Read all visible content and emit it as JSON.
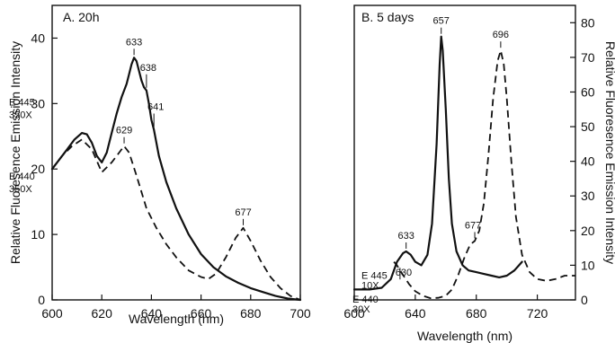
{
  "chart_data": [
    {
      "type": "line",
      "title": "A. 20h",
      "xlabel": "Wavelength (nm)",
      "ylabel": "Relative Fluoresence Emission Intensity",
      "xlim": [
        600,
        700
      ],
      "ylim": [
        0,
        45
      ],
      "x_ticks": [
        "600",
        "620",
        "640",
        "660",
        "680",
        "700"
      ],
      "y_ticks": [
        "0",
        "10",
        "20",
        "30",
        "40"
      ],
      "y_axis_side": "left",
      "grid": false,
      "series": [
        {
          "style": "solid",
          "x": [
            600,
            603,
            606,
            609,
            612,
            614,
            616,
            618,
            620,
            622,
            624,
            626,
            628,
            630,
            631,
            632,
            633,
            634,
            635,
            636,
            637,
            638,
            639,
            640,
            641,
            643,
            646,
            650,
            655,
            660,
            665,
            670,
            675,
            680,
            685,
            690,
            695,
            700
          ],
          "y": [
            20,
            21.5,
            23,
            24.5,
            25.5,
            25.3,
            24,
            22,
            21,
            22.5,
            25.5,
            28.5,
            31,
            33,
            34.5,
            36,
            37,
            36.5,
            35,
            33.5,
            32.5,
            32,
            30,
            27.5,
            26,
            22,
            18,
            14,
            10,
            7,
            5,
            3.6,
            2.6,
            1.8,
            1.2,
            0.6,
            0.2,
            0
          ]
        },
        {
          "style": "dashed",
          "x": [
            600,
            604,
            608,
            612,
            616,
            620,
            624,
            627,
            629,
            631,
            634,
            638,
            642,
            646,
            650,
            655,
            660,
            663,
            666,
            670,
            674,
            677,
            680,
            684,
            688,
            692,
            696,
            700
          ],
          "y": [
            20,
            22,
            23.5,
            24.5,
            23,
            19.5,
            21,
            22.5,
            23.5,
            22.5,
            19,
            14,
            11,
            8.5,
            6.5,
            4.5,
            3.5,
            3.2,
            4,
            6.5,
            9.5,
            11,
            9,
            6,
            3.5,
            1.8,
            0.6,
            0
          ]
        }
      ],
      "annotations": [
        {
          "text": "633",
          "x": 633,
          "y": 37
        },
        {
          "text": "638",
          "x": 638,
          "y": 32
        },
        {
          "text": "641",
          "x": 641,
          "y": 26
        },
        {
          "text": "629",
          "x": 629,
          "y": 23.5
        },
        {
          "text": "677",
          "x": 677,
          "y": 11
        },
        {
          "text": "E 445",
          "x": 600,
          "y": 26
        },
        {
          "text": "350X",
          "x": 600,
          "y": 26
        },
        {
          "text": "E 440",
          "x": 600,
          "y": 20
        },
        {
          "text": "350X",
          "x": 600,
          "y": 20
        }
      ]
    },
    {
      "type": "line",
      "title": "B. 5 days",
      "xlabel": "Wavelength (nm)",
      "ylabel": "Relative Fluoresence Emission Intensity",
      "xlim": [
        600,
        745
      ],
      "ylim": [
        0,
        85
      ],
      "x_ticks": [
        "600",
        "640",
        "680",
        "720"
      ],
      "y_ticks": [
        "0",
        "10",
        "20",
        "30",
        "40",
        "50",
        "60",
        "70",
        "80"
      ],
      "y_axis_side": "right",
      "grid": false,
      "series": [
        {
          "style": "solid",
          "x": [
            600,
            610,
            618,
            624,
            628,
            632,
            634,
            637,
            640,
            644,
            648,
            651,
            654,
            656,
            657,
            658,
            660,
            662,
            664,
            667,
            671,
            675,
            680,
            685,
            690,
            695,
            700,
            705,
            710
          ],
          "y": [
            3,
            3,
            3.5,
            6,
            11,
            13.5,
            14,
            13,
            11,
            10,
            13,
            22,
            45,
            68,
            76,
            72,
            55,
            35,
            22,
            14,
            10,
            8.5,
            8,
            7.5,
            7,
            6.5,
            7,
            8.5,
            11
          ]
        },
        {
          "style": "dashed",
          "x": [
            626,
            628,
            630,
            633,
            636,
            640,
            645,
            650,
            655,
            660,
            664,
            668,
            672,
            676,
            679,
            682,
            685,
            688,
            691,
            694,
            696,
            698,
            700,
            703,
            706,
            710,
            715,
            720,
            726,
            732,
            738,
            745
          ],
          "y": [
            11,
            10,
            8.5,
            6.5,
            4.5,
            2.5,
            1.2,
            0.5,
            0.6,
            1.2,
            3,
            7,
            12,
            16,
            17,
            20,
            28,
            42,
            58,
            69,
            72,
            68,
            58,
            40,
            24,
            13,
            8,
            6,
            5.5,
            6,
            7,
            7
          ]
        }
      ],
      "annotations": [
        {
          "text": "657",
          "x": 657,
          "y": 76
        },
        {
          "text": "696",
          "x": 696,
          "y": 72
        },
        {
          "text": "633",
          "x": 634,
          "y": 14
        },
        {
          "text": "677",
          "x": 679,
          "y": 17
        },
        {
          "text": "630",
          "x": 630,
          "y": 8.5
        },
        {
          "text": "E 445",
          "x": 600,
          "y": 3
        },
        {
          "text": "10X",
          "x": 600,
          "y": 3
        },
        {
          "text": "E 440",
          "x": 600,
          "y": 1
        },
        {
          "text": "30X",
          "x": 600,
          "y": 1
        }
      ]
    }
  ]
}
